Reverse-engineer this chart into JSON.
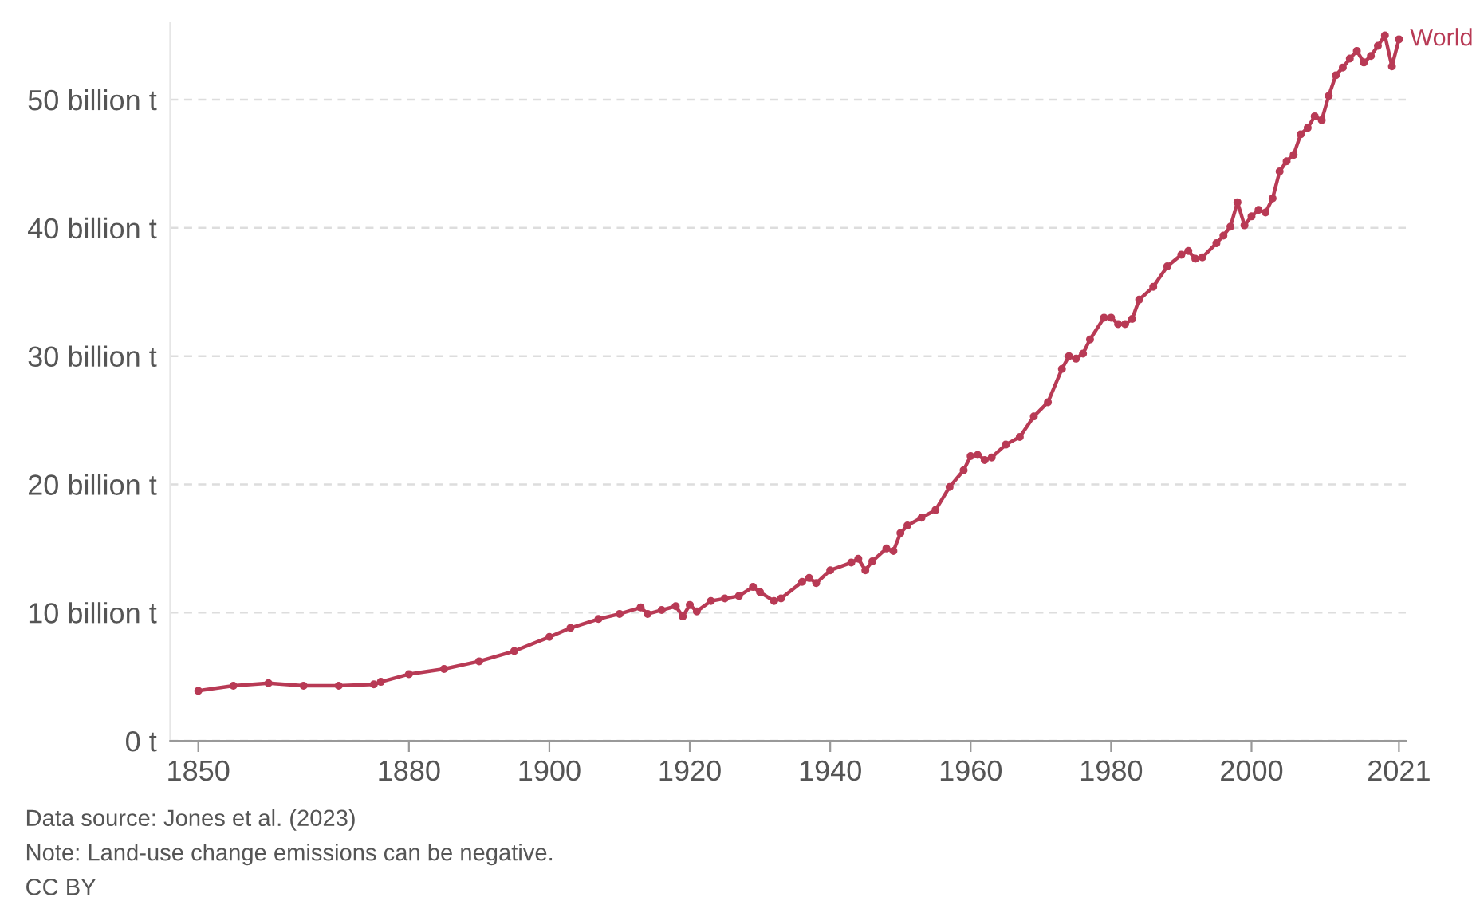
{
  "chart_data": {
    "type": "line",
    "x": [
      1850,
      1855,
      1860,
      1865,
      1870,
      1875,
      1876,
      1880,
      1885,
      1890,
      1895,
      1900,
      1903,
      1907,
      1910,
      1913,
      1914,
      1916,
      1918,
      1919,
      1920,
      1921,
      1923,
      1925,
      1927,
      1929,
      1930,
      1932,
      1933,
      1936,
      1937,
      1938,
      1940,
      1943,
      1944,
      1945,
      1946,
      1948,
      1949,
      1950,
      1951,
      1953,
      1955,
      1957,
      1959,
      1960,
      1961,
      1962,
      1963,
      1965,
      1967,
      1969,
      1971,
      1973,
      1974,
      1975,
      1976,
      1977,
      1979,
      1980,
      1981,
      1982,
      1983,
      1984,
      1986,
      1988,
      1990,
      1991,
      1992,
      1993,
      1995,
      1996,
      1997,
      1998,
      1999,
      2000,
      2001,
      2002,
      2003,
      2004,
      2005,
      2006,
      2007,
      2008,
      2009,
      2010,
      2011,
      2012,
      2013,
      2014,
      2015,
      2016,
      2017,
      2018,
      2019,
      2020,
      2021
    ],
    "series": [
      {
        "name": "World",
        "color": "#b83a55",
        "values": [
          3.9,
          4.3,
          4.5,
          4.3,
          4.3,
          4.4,
          4.6,
          5.2,
          5.6,
          6.2,
          7.0,
          8.1,
          8.8,
          9.5,
          9.9,
          10.4,
          9.9,
          10.2,
          10.5,
          9.7,
          10.6,
          10.1,
          10.9,
          11.1,
          11.3,
          12.0,
          11.6,
          10.9,
          11.1,
          12.4,
          12.7,
          12.3,
          13.3,
          13.9,
          14.2,
          13.3,
          14.0,
          15.0,
          14.8,
          16.2,
          16.8,
          17.4,
          18.0,
          19.8,
          21.1,
          22.2,
          22.3,
          21.9,
          22.1,
          23.1,
          23.7,
          25.3,
          26.4,
          29.0,
          30.0,
          29.8,
          30.2,
          31.3,
          33.0,
          33.0,
          32.5,
          32.5,
          32.9,
          34.4,
          35.4,
          37.0,
          37.9,
          38.2,
          37.6,
          37.7,
          38.8,
          39.4,
          40.1,
          42.0,
          40.2,
          40.9,
          41.4,
          41.2,
          42.3,
          44.4,
          45.2,
          45.7,
          47.3,
          47.8,
          48.7,
          48.4,
          50.3,
          51.9,
          52.5,
          53.2,
          53.8,
          52.9,
          53.4,
          54.2,
          55.0,
          52.6,
          54.7
        ]
      }
    ],
    "xlim": [
      1846,
      2022
    ],
    "xticks": [
      1850,
      1880,
      1900,
      1920,
      1940,
      1960,
      1980,
      2000,
      2021
    ],
    "yticks": [
      {
        "value": 0,
        "label": "0 t"
      },
      {
        "value": 10,
        "label": "10 billion t"
      },
      {
        "value": 20,
        "label": "20 billion t"
      },
      {
        "value": 30,
        "label": "30 billion t"
      },
      {
        "value": 40,
        "label": "40 billion t"
      },
      {
        "value": 50,
        "label": "50 billion t"
      }
    ],
    "ylim": [
      0,
      56
    ],
    "grid": "y",
    "marker": "circle",
    "line_style": "solid",
    "annotations": [
      "Data source: Jones et al. (2023)",
      "Note: Land-use change emissions can be negative.",
      "CC BY"
    ]
  }
}
